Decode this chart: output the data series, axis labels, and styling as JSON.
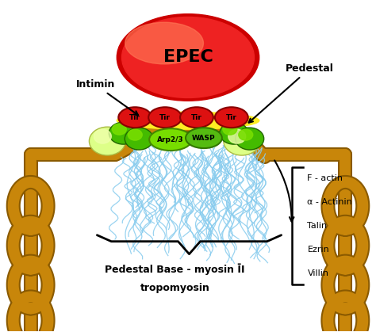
{
  "bg_color": "#ffffff",
  "epec_dark": "#cc0000",
  "epec_mid": "#ee2222",
  "epec_light": "#ff7755",
  "epec_text": "EPEC",
  "membrane_color": "#c8860a",
  "tir_color": "#dd1111",
  "tir_edge": "#880000",
  "yellow_band_color": "#ffee22",
  "green_dark": "#44bb00",
  "green_mid": "#77dd00",
  "green_light": "#ccff66",
  "green_pale": "#ddff88",
  "actin_color": "#88ccee",
  "pedestal_label": "Pedestal",
  "intimin_label": "Intimin",
  "arp_label": "Arp2/3",
  "wasp_label": "WASP",
  "pedestal_base_line1": "Pedestal Base - myosin ĪI",
  "tropomyosin_label": "tropomyosin",
  "f_actin": "F - actin",
  "alpha_actinin": "α - Actinin",
  "talin": "Talin",
  "ezrin": "Ezrin",
  "villin": "Villin"
}
